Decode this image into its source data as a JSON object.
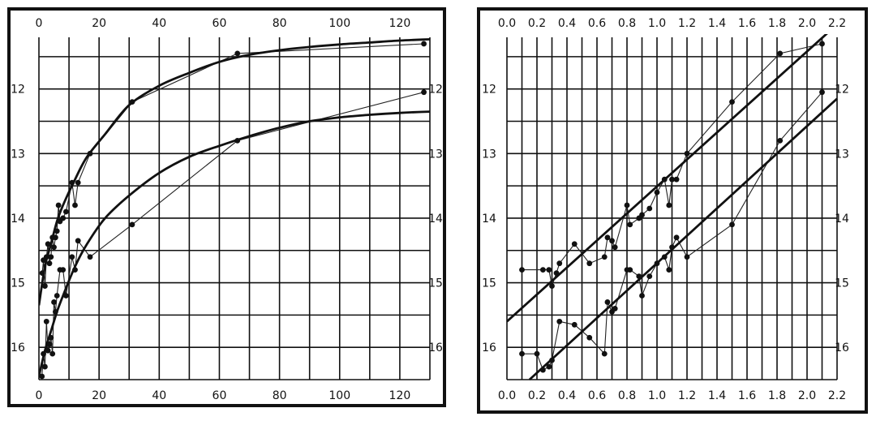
{
  "chart_data": [
    {
      "type": "scatter",
      "xlim": [
        0,
        130
      ],
      "ylim": [
        16.5,
        11.2
      ],
      "y_inverted": true,
      "grid": true,
      "x_ticks": [
        "0",
        "20",
        "40",
        "60",
        "80",
        "100",
        "120"
      ],
      "y_ticks": [
        "12",
        "13",
        "14",
        "15",
        "16"
      ],
      "series": [
        {
          "curve": "thick",
          "fit": [
            [
              0,
              15.35
            ],
            [
              2,
              14.75
            ],
            [
              4,
              14.4
            ],
            [
              6,
              14.05
            ],
            [
              8,
              13.8
            ],
            [
              12,
              13.4
            ],
            [
              16,
              13.05
            ],
            [
              22,
              12.7
            ],
            [
              30,
              12.25
            ],
            [
              40,
              11.95
            ],
            [
              50,
              11.75
            ],
            [
              60,
              11.58
            ],
            [
              70,
              11.47
            ],
            [
              80,
              11.4
            ],
            [
              90,
              11.35
            ],
            [
              100,
              11.31
            ],
            [
              110,
              11.28
            ],
            [
              120,
              11.25
            ],
            [
              130,
              11.23
            ]
          ],
          "points": [
            [
              1.1,
              14.85
            ],
            [
              1.5,
              14.65
            ],
            [
              2,
              15.05
            ],
            [
              2.5,
              14.6
            ],
            [
              3,
              14.4
            ],
            [
              3.5,
              14.7
            ],
            [
              4,
              14.6
            ],
            [
              4.5,
              14.3
            ],
            [
              5,
              14.45
            ],
            [
              5.5,
              14.3
            ],
            [
              6,
              14.2
            ],
            [
              6.5,
              13.8
            ],
            [
              7,
              14.05
            ],
            [
              8,
              14.0
            ],
            [
              9,
              13.9
            ],
            [
              11,
              13.45
            ],
            [
              12,
              13.8
            ],
            [
              13,
              13.45
            ],
            [
              17,
              13.0
            ],
            [
              31,
              12.2
            ],
            [
              66,
              11.45
            ],
            [
              128,
              11.3
            ]
          ]
        },
        {
          "curve": "thick",
          "fit": [
            [
              0,
              16.45
            ],
            [
              2,
              16.05
            ],
            [
              4,
              15.75
            ],
            [
              6,
              15.45
            ],
            [
              8,
              15.2
            ],
            [
              12,
              14.75
            ],
            [
              16,
              14.4
            ],
            [
              22,
              14.0
            ],
            [
              30,
              13.65
            ],
            [
              40,
              13.3
            ],
            [
              50,
              13.05
            ],
            [
              60,
              12.88
            ],
            [
              70,
              12.73
            ],
            [
              80,
              12.6
            ],
            [
              90,
              12.5
            ],
            [
              100,
              12.44
            ],
            [
              110,
              12.4
            ],
            [
              120,
              12.37
            ],
            [
              130,
              12.35
            ]
          ],
          "points": [
            [
              1,
              16.45
            ],
            [
              1.5,
              16.1
            ],
            [
              2,
              16.3
            ],
            [
              2.5,
              15.6
            ],
            [
              3,
              16.05
            ],
            [
              3.5,
              15.95
            ],
            [
              4,
              15.85
            ],
            [
              4.5,
              16.1
            ],
            [
              5,
              15.3
            ],
            [
              5.5,
              15.45
            ],
            [
              6,
              15.2
            ],
            [
              7,
              14.8
            ],
            [
              8,
              14.8
            ],
            [
              9,
              15.2
            ],
            [
              11,
              14.6
            ],
            [
              12,
              14.8
            ],
            [
              13,
              14.35
            ],
            [
              17,
              14.6
            ],
            [
              31,
              14.1
            ],
            [
              66,
              12.8
            ],
            [
              128,
              12.05
            ]
          ]
        }
      ]
    },
    {
      "type": "scatter",
      "xlim": [
        0,
        2.2
      ],
      "ylim": [
        16.5,
        11.2
      ],
      "y_inverted": true,
      "grid": true,
      "x_ticks": [
        "0.0",
        "0.2",
        "0.4",
        "0.6",
        "0.8",
        "1.0",
        "1.2",
        "1.4",
        "1.6",
        "1.8",
        "2.0",
        "2.2"
      ],
      "y_ticks": [
        "12",
        "13",
        "14",
        "15",
        "16"
      ],
      "series": [
        {
          "curve": "thick",
          "fit": [
            [
              0,
              15.6
            ],
            [
              2.2,
              11.0
            ]
          ],
          "points": [
            [
              0.1,
              14.8
            ],
            [
              0.24,
              14.8
            ],
            [
              0.28,
              14.8
            ],
            [
              0.3,
              15.05
            ],
            [
              0.33,
              14.85
            ],
            [
              0.35,
              14.7
            ],
            [
              0.45,
              14.4
            ],
            [
              0.55,
              14.7
            ],
            [
              0.65,
              14.6
            ],
            [
              0.67,
              14.3
            ],
            [
              0.7,
              14.35
            ],
            [
              0.72,
              14.45
            ],
            [
              0.8,
              13.8
            ],
            [
              0.82,
              14.1
            ],
            [
              0.88,
              14.0
            ],
            [
              0.9,
              13.95
            ],
            [
              0.95,
              13.85
            ],
            [
              1.0,
              13.6
            ],
            [
              1.05,
              13.4
            ],
            [
              1.08,
              13.8
            ],
            [
              1.1,
              13.4
            ],
            [
              1.13,
              13.4
            ],
            [
              1.2,
              13.0
            ],
            [
              1.5,
              12.2
            ],
            [
              1.82,
              11.45
            ],
            [
              2.1,
              11.3
            ]
          ]
        },
        {
          "curve": "thick",
          "fit": [
            [
              0.15,
              16.5
            ],
            [
              2.2,
              12.15
            ]
          ],
          "points": [
            [
              0.1,
              16.1
            ],
            [
              0.2,
              16.1
            ],
            [
              0.24,
              16.35
            ],
            [
              0.28,
              16.3
            ],
            [
              0.3,
              16.2
            ],
            [
              0.35,
              15.6
            ],
            [
              0.45,
              15.65
            ],
            [
              0.55,
              15.85
            ],
            [
              0.65,
              16.1
            ],
            [
              0.67,
              15.3
            ],
            [
              0.7,
              15.45
            ],
            [
              0.72,
              15.4
            ],
            [
              0.8,
              14.8
            ],
            [
              0.82,
              14.8
            ],
            [
              0.88,
              14.9
            ],
            [
              0.9,
              15.2
            ],
            [
              0.95,
              14.9
            ],
            [
              1.0,
              14.7
            ],
            [
              1.05,
              14.6
            ],
            [
              1.08,
              14.8
            ],
            [
              1.1,
              14.45
            ],
            [
              1.13,
              14.3
            ],
            [
              1.2,
              14.6
            ],
            [
              1.5,
              14.1
            ],
            [
              1.82,
              12.8
            ],
            [
              2.1,
              12.05
            ]
          ]
        }
      ]
    }
  ]
}
